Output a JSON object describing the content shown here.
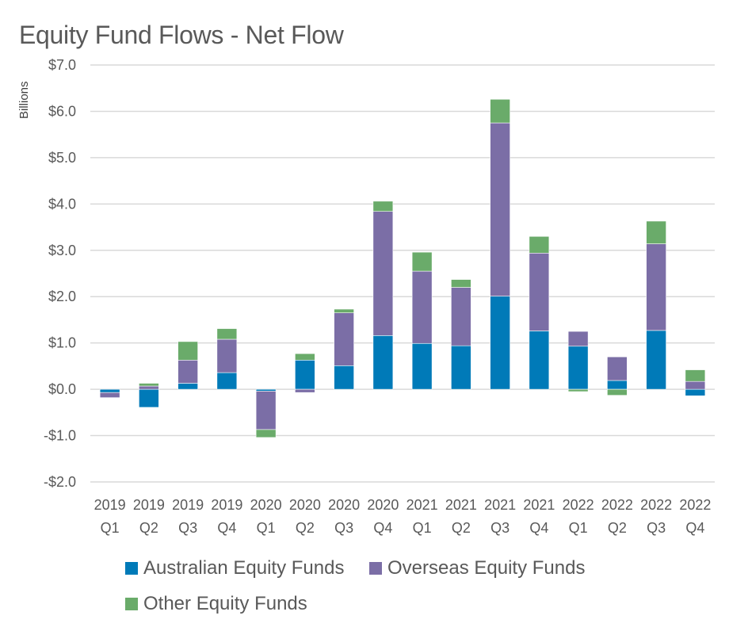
{
  "chart_data": {
    "type": "bar",
    "stacked": true,
    "title": "Equity Fund Flows - Net Flow",
    "xlabel": "",
    "ylabel": "Billions",
    "ylim": [
      -2.0,
      7.0
    ],
    "yticks": [
      7.0,
      6.0,
      5.0,
      4.0,
      3.0,
      2.0,
      1.0,
      0.0,
      -1.0,
      -2.0
    ],
    "ytick_labels": [
      "$7.0",
      "$6.0",
      "$5.0",
      "$4.0",
      "$3.0",
      "$2.0",
      "$1.0",
      "$0.0",
      "-$1.0",
      "-$2.0"
    ],
    "grid": true,
    "legend_position": "bottom",
    "categories": [
      [
        "2019",
        "Q1"
      ],
      [
        "2019",
        "Q2"
      ],
      [
        "2019",
        "Q3"
      ],
      [
        "2019",
        "Q4"
      ],
      [
        "2020",
        "Q1"
      ],
      [
        "2020",
        "Q2"
      ],
      [
        "2020",
        "Q3"
      ],
      [
        "2020",
        "Q4"
      ],
      [
        "2021",
        "Q1"
      ],
      [
        "2021",
        "Q2"
      ],
      [
        "2021",
        "Q3"
      ],
      [
        "2021",
        "Q4"
      ],
      [
        "2022",
        "Q1"
      ],
      [
        "2022",
        "Q2"
      ],
      [
        "2022",
        "Q3"
      ],
      [
        "2022",
        "Q4"
      ]
    ],
    "series": [
      {
        "name": "Australian Equity Funds",
        "color": "#007AB8",
        "values": [
          -0.07,
          -0.39,
          0.13,
          0.36,
          -0.04,
          0.63,
          0.51,
          1.16,
          0.99,
          0.94,
          2.01,
          1.26,
          0.93,
          0.19,
          1.27,
          -0.14
        ]
      },
      {
        "name": "Overseas Equity Funds",
        "color": "#7B6EA6",
        "values": [
          -0.11,
          0.07,
          0.5,
          0.72,
          -0.83,
          -0.07,
          1.14,
          2.68,
          1.56,
          1.26,
          3.74,
          1.68,
          0.32,
          0.51,
          1.87,
          0.17
        ]
      },
      {
        "name": "Other Equity Funds",
        "color": "#6AAB6A",
        "values": [
          0.0,
          0.06,
          0.4,
          0.23,
          -0.17,
          0.14,
          0.08,
          0.22,
          0.41,
          0.17,
          0.51,
          0.36,
          -0.05,
          -0.13,
          0.49,
          0.25
        ]
      }
    ]
  }
}
